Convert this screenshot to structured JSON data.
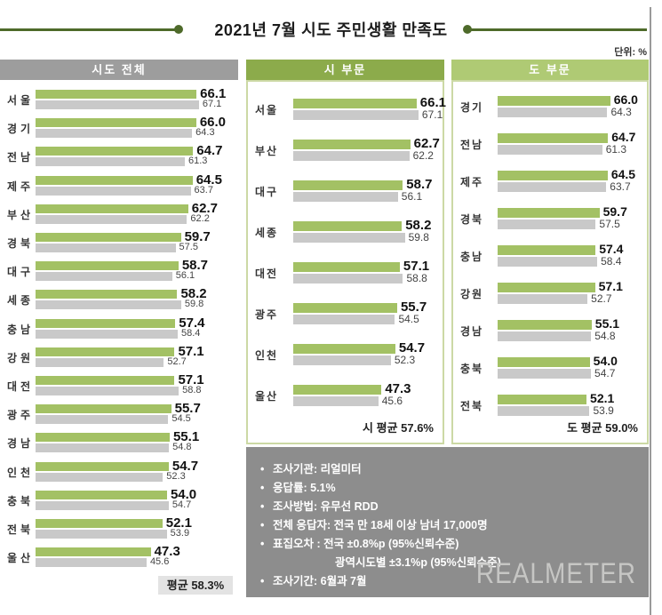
{
  "title": "2021년 7월 시도 주민생활 만족도",
  "unit_label": "단위: %",
  "panels": {
    "all": {
      "header": "시도 전체",
      "average_label": "평균 58.3%"
    },
    "city": {
      "header": "시 부문",
      "average_label": "시 평균 57.6%"
    },
    "province": {
      "header": "도 부문",
      "average_label": "도 평균 59.0%"
    }
  },
  "info_box": {
    "lines": [
      {
        "bullet": true,
        "indent": false,
        "text": "조사기관: 리얼미터"
      },
      {
        "bullet": true,
        "indent": false,
        "text": "응답률: 5.1%"
      },
      {
        "bullet": true,
        "indent": false,
        "text": "조사방법: 유무선 RDD"
      },
      {
        "bullet": true,
        "indent": false,
        "text": "전체 응답자: 전국 만 18세 이상 남녀 17,000명"
      },
      {
        "bullet": true,
        "indent": false,
        "text": "표집오차 : 전국 ±0.8%p (95%신뢰수준)"
      },
      {
        "bullet": false,
        "indent": true,
        "text": "광역시도별 ±3.1%p (95%신뢰수준)"
      },
      {
        "bullet": true,
        "indent": false,
        "text": "조사기간: 6월과 7월"
      }
    ]
  },
  "watermark": "REALMETER",
  "colors": {
    "accent_olive": "#4e6a2a",
    "bar_current": "#a3c164",
    "bar_previous": "#c9c9c9",
    "header_all": "#9d9d9d",
    "header_city": "#8cab4b",
    "header_province": "#afca74",
    "panel_border": "#ccd9a5",
    "info_box_bg": "#8d8d8d"
  },
  "chart_data": [
    {
      "type": "bar",
      "orientation": "horizontal",
      "title": "시도 전체",
      "categories": [
        "서울",
        "경기",
        "전남",
        "제주",
        "부산",
        "경북",
        "대구",
        "세종",
        "충남",
        "강원",
        "대전",
        "광주",
        "경남",
        "인천",
        "충북",
        "전북",
        "울산"
      ],
      "series": [
        {
          "name": "7월",
          "values": [
            66.1,
            66.0,
            64.7,
            64.5,
            62.7,
            59.7,
            58.7,
            58.2,
            57.4,
            57.1,
            57.1,
            55.7,
            55.1,
            54.7,
            54.0,
            52.1,
            47.3
          ]
        },
        {
          "name": "6월",
          "values": [
            67.1,
            64.3,
            61.3,
            63.7,
            62.2,
            57.5,
            56.1,
            59.8,
            58.4,
            52.7,
            58.8,
            54.5,
            54.8,
            52.3,
            54.7,
            53.9,
            45.6
          ]
        }
      ],
      "average": 58.3,
      "xlim": [
        0,
        70
      ],
      "unit": "%",
      "grid": false,
      "legend": "none"
    },
    {
      "type": "bar",
      "orientation": "horizontal",
      "title": "시 부문",
      "categories": [
        "서울",
        "부산",
        "대구",
        "세종",
        "대전",
        "광주",
        "인천",
        "울산"
      ],
      "series": [
        {
          "name": "7월",
          "values": [
            66.1,
            62.7,
            58.7,
            58.2,
            57.1,
            55.7,
            54.7,
            47.3
          ]
        },
        {
          "name": "6월",
          "values": [
            67.1,
            62.2,
            56.1,
            59.8,
            58.8,
            54.5,
            52.3,
            45.6
          ]
        }
      ],
      "average": 57.6,
      "xlim": [
        0,
        70
      ],
      "unit": "%",
      "grid": false,
      "legend": "none"
    },
    {
      "type": "bar",
      "orientation": "horizontal",
      "title": "도 부문",
      "categories": [
        "경기",
        "전남",
        "제주",
        "경북",
        "충남",
        "강원",
        "경남",
        "충북",
        "전북"
      ],
      "series": [
        {
          "name": "7월",
          "values": [
            66.0,
            64.7,
            64.5,
            59.7,
            57.4,
            57.1,
            55.1,
            54.0,
            52.1
          ]
        },
        {
          "name": "6월",
          "values": [
            64.3,
            61.3,
            63.7,
            57.5,
            58.4,
            52.7,
            54.8,
            54.7,
            53.9
          ]
        }
      ],
      "average": 59.0,
      "xlim": [
        0,
        70
      ],
      "unit": "%",
      "grid": false,
      "legend": "none"
    }
  ]
}
